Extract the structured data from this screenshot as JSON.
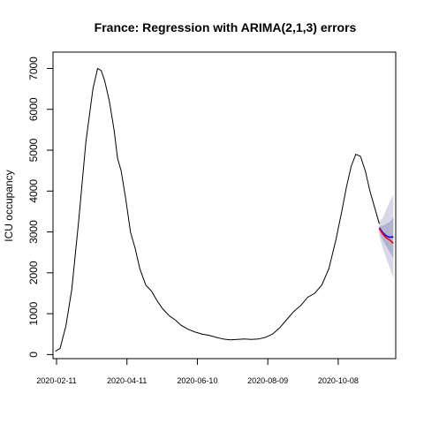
{
  "chart_data": {
    "type": "line",
    "title": "France: Regression with ARIMA(2,1,3) errors",
    "xlabel": "",
    "ylabel": "ICU occupancy",
    "xlim": [
      "2020-02-08",
      "2020-11-26"
    ],
    "ylim": [
      -100,
      7400
    ],
    "x_ticks": [
      "2020-02-11",
      "2020-04-11",
      "2020-06-10",
      "2020-08-09",
      "2020-10-08"
    ],
    "y_ticks": [
      0,
      1000,
      2000,
      3000,
      4000,
      5000,
      6000,
      7000
    ],
    "grid": false,
    "legend": "none",
    "series": [
      {
        "role": "observed",
        "color": "#000000",
        "x": [
          "2020-02-10",
          "2020-02-14",
          "2020-02-19",
          "2020-02-24",
          "2020-03-01",
          "2020-03-07",
          "2020-03-13",
          "2020-03-17",
          "2020-03-20",
          "2020-03-23",
          "2020-03-27",
          "2020-03-31",
          "2020-04-03",
          "2020-04-06",
          "2020-04-10",
          "2020-04-14",
          "2020-04-18",
          "2020-04-22",
          "2020-04-27",
          "2020-05-02",
          "2020-05-07",
          "2020-05-12",
          "2020-05-17",
          "2020-05-22",
          "2020-05-27",
          "2020-06-02",
          "2020-06-08",
          "2020-06-14",
          "2020-06-20",
          "2020-06-26",
          "2020-07-02",
          "2020-07-08",
          "2020-07-14",
          "2020-07-20",
          "2020-07-26",
          "2020-08-01",
          "2020-08-07",
          "2020-08-13",
          "2020-08-19",
          "2020-08-25",
          "2020-08-31",
          "2020-09-06",
          "2020-09-12",
          "2020-09-18",
          "2020-09-24",
          "2020-09-30",
          "2020-10-06",
          "2020-10-11",
          "2020-10-15",
          "2020-10-19",
          "2020-10-23",
          "2020-10-27",
          "2020-10-31",
          "2020-11-04",
          "2020-11-08",
          "2020-11-12"
        ],
        "y": [
          80,
          150,
          700,
          1600,
          3300,
          5200,
          6500,
          7000,
          6950,
          6700,
          6200,
          5500,
          4800,
          4500,
          3800,
          3000,
          2600,
          2100,
          1700,
          1550,
          1300,
          1100,
          950,
          850,
          720,
          620,
          550,
          500,
          470,
          420,
          380,
          360,
          370,
          380,
          370,
          380,
          420,
          500,
          650,
          850,
          1050,
          1200,
          1400,
          1500,
          1700,
          2100,
          2800,
          3500,
          4100,
          4600,
          4900,
          4850,
          4500,
          4000,
          3600,
          3200
        ]
      },
      {
        "role": "forecast",
        "color": "#0000ff",
        "x": [
          "2020-11-12",
          "2020-11-15",
          "2020-11-18",
          "2020-11-21",
          "2020-11-24"
        ],
        "y": [
          3100,
          2980,
          2900,
          2870,
          2880
        ]
      },
      {
        "role": "actual",
        "color": "#ff0000",
        "x": [
          "2020-11-12",
          "2020-11-15",
          "2020-11-18",
          "2020-11-21",
          "2020-11-24"
        ],
        "y": [
          3080,
          2950,
          2850,
          2800,
          2720
        ]
      }
    ],
    "intervals": {
      "x": [
        "2020-11-12",
        "2020-11-15",
        "2020-11-18",
        "2020-11-21",
        "2020-11-24"
      ],
      "outer_lower": [
        2900,
        2600,
        2350,
        2120,
        1850
      ],
      "outer_upper": [
        3250,
        3350,
        3550,
        3750,
        3900
      ],
      "inner_lower": [
        3000,
        2800,
        2650,
        2500,
        2350
      ],
      "inner_upper": [
        3150,
        3150,
        3200,
        3250,
        3350
      ],
      "outer_color": "#d8d8e8",
      "inner_color": "#b3b3cf"
    }
  }
}
